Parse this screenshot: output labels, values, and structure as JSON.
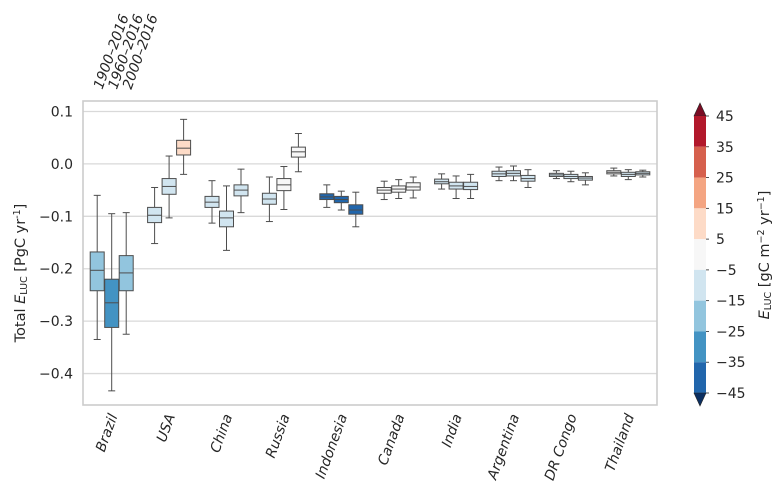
{
  "chart_data": {
    "type": "box",
    "ylabel_main": "Total ",
    "ylabel_var": "E",
    "ylabel_sub": "LUC",
    "ylabel_unit": " [PgC yr",
    "ylabel_unit_sup": "-1",
    "ylabel_unit_end": "]",
    "ylim": [
      -0.46,
      0.12
    ],
    "yticks": [
      0.1,
      0.0,
      -0.1,
      -0.2,
      -0.3,
      -0.4
    ],
    "ytick_labels": [
      "0.1",
      "0.0",
      "−0.1",
      "−0.2",
      "−0.3",
      "−0.4"
    ],
    "grid": "horizontal",
    "periods": [
      "1900–2016",
      "1960–2016",
      "2000–2016"
    ],
    "categories": [
      "Brazil",
      "USA",
      "China",
      "Russia",
      "Indonesia",
      "Canada",
      "India",
      "Argentina",
      "DR Congo",
      "Thailand"
    ],
    "boxes": [
      [
        {
          "min": -0.335,
          "q1": -0.242,
          "median": -0.203,
          "q3": -0.168,
          "max": -0.06,
          "value": -21
        },
        {
          "min": -0.433,
          "q1": -0.312,
          "median": -0.265,
          "q3": -0.22,
          "max": -0.095,
          "value": -30
        },
        {
          "min": -0.325,
          "q1": -0.242,
          "median": -0.208,
          "q3": -0.175,
          "max": -0.093,
          "value": -22
        }
      ],
      [
        {
          "min": -0.152,
          "q1": -0.112,
          "median": -0.098,
          "q3": -0.083,
          "max": -0.045,
          "value": -12
        },
        {
          "min": -0.103,
          "q1": -0.058,
          "median": -0.043,
          "q3": -0.028,
          "max": 0.015,
          "value": -6
        },
        {
          "min": -0.02,
          "q1": 0.017,
          "median": 0.03,
          "q3": 0.045,
          "max": 0.085,
          "value": 7
        }
      ],
      [
        {
          "min": -0.113,
          "q1": -0.083,
          "median": -0.073,
          "q3": -0.062,
          "max": -0.032,
          "value": -8
        },
        {
          "min": -0.165,
          "q1": -0.12,
          "median": -0.103,
          "q3": -0.09,
          "max": -0.042,
          "value": -12
        },
        {
          "min": -0.093,
          "q1": -0.061,
          "median": -0.05,
          "q3": -0.04,
          "max": -0.01,
          "value": -6
        }
      ],
      [
        {
          "min": -0.11,
          "q1": -0.077,
          "median": -0.067,
          "q3": -0.056,
          "max": -0.025,
          "value": -7
        },
        {
          "min": -0.087,
          "q1": -0.051,
          "median": -0.04,
          "q3": -0.028,
          "max": -0.005,
          "value": -5
        },
        {
          "min": -0.015,
          "q1": 0.013,
          "median": 0.023,
          "q3": 0.032,
          "max": 0.058,
          "value": -2
        }
      ],
      [
        {
          "min": -0.083,
          "q1": -0.068,
          "median": -0.063,
          "q3": -0.057,
          "max": -0.04,
          "value": -38
        },
        {
          "min": -0.088,
          "q1": -0.074,
          "median": -0.068,
          "q3": -0.062,
          "max": -0.052,
          "value": -40
        },
        {
          "min": -0.12,
          "q1": -0.096,
          "median": -0.088,
          "q3": -0.078,
          "max": -0.054,
          "value": -45
        }
      ],
      [
        {
          "min": -0.068,
          "q1": -0.056,
          "median": -0.05,
          "q3": -0.045,
          "max": -0.033,
          "value": -4
        },
        {
          "min": -0.066,
          "q1": -0.054,
          "median": -0.048,
          "q3": -0.042,
          "max": -0.03,
          "value": -4
        },
        {
          "min": -0.065,
          "q1": -0.05,
          "median": -0.044,
          "q3": -0.036,
          "max": -0.025,
          "value": -4
        }
      ],
      [
        {
          "min": -0.048,
          "q1": -0.038,
          "median": -0.034,
          "q3": -0.029,
          "max": -0.019,
          "value": -6
        },
        {
          "min": -0.066,
          "q1": -0.048,
          "median": -0.042,
          "q3": -0.035,
          "max": -0.023,
          "value": -8
        },
        {
          "min": -0.066,
          "q1": -0.049,
          "median": -0.043,
          "q3": -0.035,
          "max": -0.02,
          "value": -8
        }
      ],
      [
        {
          "min": -0.032,
          "q1": -0.024,
          "median": -0.019,
          "q3": -0.014,
          "max": -0.006,
          "value": -8
        },
        {
          "min": -0.032,
          "q1": -0.023,
          "median": -0.018,
          "q3": -0.013,
          "max": -0.004,
          "value": -8
        },
        {
          "min": -0.045,
          "q1": -0.033,
          "median": -0.028,
          "q3": -0.022,
          "max": -0.011,
          "value": -10
        }
      ],
      [
        {
          "min": -0.028,
          "q1": -0.024,
          "median": -0.021,
          "q3": -0.018,
          "max": -0.013,
          "value": -6
        },
        {
          "min": -0.034,
          "q1": -0.028,
          "median": -0.024,
          "q3": -0.02,
          "max": -0.014,
          "value": -6
        },
        {
          "min": -0.04,
          "q1": -0.031,
          "median": -0.027,
          "q3": -0.024,
          "max": -0.017,
          "value": -8
        }
      ],
      [
        {
          "min": -0.023,
          "q1": -0.019,
          "median": -0.016,
          "q3": -0.013,
          "max": -0.008,
          "value": -5
        },
        {
          "min": -0.03,
          "q1": -0.024,
          "median": -0.02,
          "q3": -0.016,
          "max": -0.011,
          "value": -6
        },
        {
          "min": -0.025,
          "q1": -0.021,
          "median": -0.018,
          "q3": -0.015,
          "max": -0.012,
          "value": -6
        }
      ]
    ],
    "colorbar": {
      "label_var": "E",
      "label_sub": "LUC",
      "label_unit_a": "  [gC m",
      "label_sup_a": "−2",
      "label_unit_b": " yr",
      "label_sup_b": "−1",
      "label_unit_c": "]",
      "min": -45,
      "max": 45,
      "ticks": [
        45,
        35,
        25,
        15,
        5,
        -5,
        -15,
        -25,
        -35,
        -45
      ],
      "tick_labels": [
        "45",
        "35",
        "25",
        "15",
        "5",
        "−5",
        "−15",
        "−25",
        "−35",
        "−45"
      ],
      "levels": [
        {
          "from": 45,
          "to": 55,
          "color": "#7a0c23"
        },
        {
          "from": 35,
          "to": 45,
          "color": "#b2182b"
        },
        {
          "from": 25,
          "to": 35,
          "color": "#d6604d"
        },
        {
          "from": 15,
          "to": 25,
          "color": "#f4a582"
        },
        {
          "from": 5,
          "to": 15,
          "color": "#fddbc7"
        },
        {
          "from": -5,
          "to": 5,
          "color": "#f7f7f7"
        },
        {
          "from": -15,
          "to": -5,
          "color": "#d1e5f0"
        },
        {
          "from": -25,
          "to": -15,
          "color": "#92c5de"
        },
        {
          "from": -35,
          "to": -25,
          "color": "#4393c3"
        },
        {
          "from": -45,
          "to": -35,
          "color": "#2166ac"
        },
        {
          "from": -55,
          "to": -45,
          "color": "#0b2f61"
        }
      ]
    }
  }
}
